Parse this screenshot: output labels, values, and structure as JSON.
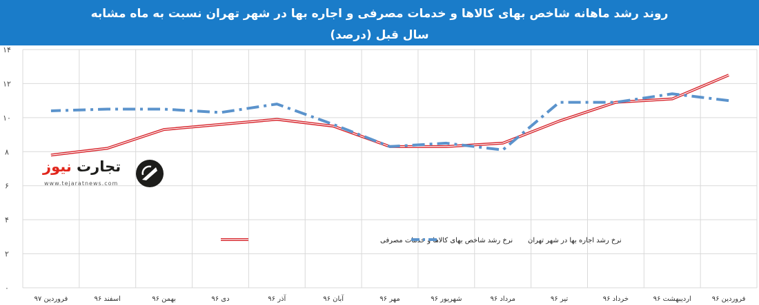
{
  "title_line1": "روند رشد ماهانه شاخص بهای کالاها و خدمات مصرفی و اجاره بها در شهر تهران نسبت به ماه مشابه",
  "title_line2": "سال قبل (درصد)",
  "logo": {
    "name": "تجارت نیوز",
    "url": "www.tejaratnews.com"
  },
  "colors": {
    "header_bg": "#1a7cc9",
    "series_cpi": "#d7262d",
    "series_rent": "#5b93cc",
    "grid": "#d9d9d9"
  },
  "chart_data": {
    "type": "line",
    "title": "روند رشد ماهانه شاخص بهای کالاها و خدمات مصرفی و اجاره بها در شهر تهران نسبت به ماه مشابه سال قبل (درصد)",
    "categories": [
      "فروردین ۹۶",
      "اردیبهشت ۹۶",
      "خرداد ۹۶",
      "تیر ۹۶",
      "مرداد ۹۶",
      "شهریور ۹۶",
      "مهر ۹۶",
      "آبان ۹۶",
      "آذر ۹۶",
      "دی ۹۶",
      "بهمن ۹۶",
      "اسفند ۹۶",
      "فروردین ۹۷"
    ],
    "y_ticks": [
      "۰",
      "۲",
      "۴",
      "۶",
      "۸",
      "۱۰",
      "۱۲",
      "۱۴"
    ],
    "y_tick_values": [
      0,
      2,
      4,
      6,
      8,
      10,
      12,
      14
    ],
    "ylim": [
      0,
      14
    ],
    "grid": true,
    "legend_position": "middle",
    "series": [
      {
        "name": "نرخ رشد شاخص بهای کالاها و خدمات مصرفی",
        "style": "solid-double",
        "values": [
          12.5,
          11.1,
          10.9,
          9.8,
          8.5,
          8.3,
          8.3,
          9.5,
          9.9,
          9.6,
          9.3,
          8.2,
          7.8
        ]
      },
      {
        "name": "نرخ رشد اجاره بها در شهر تهران",
        "style": "dash-dot",
        "values": [
          11.0,
          11.4,
          10.9,
          10.9,
          8.1,
          8.5,
          8.3,
          9.6,
          10.8,
          10.3,
          10.5,
          10.5,
          10.4
        ]
      }
    ]
  }
}
